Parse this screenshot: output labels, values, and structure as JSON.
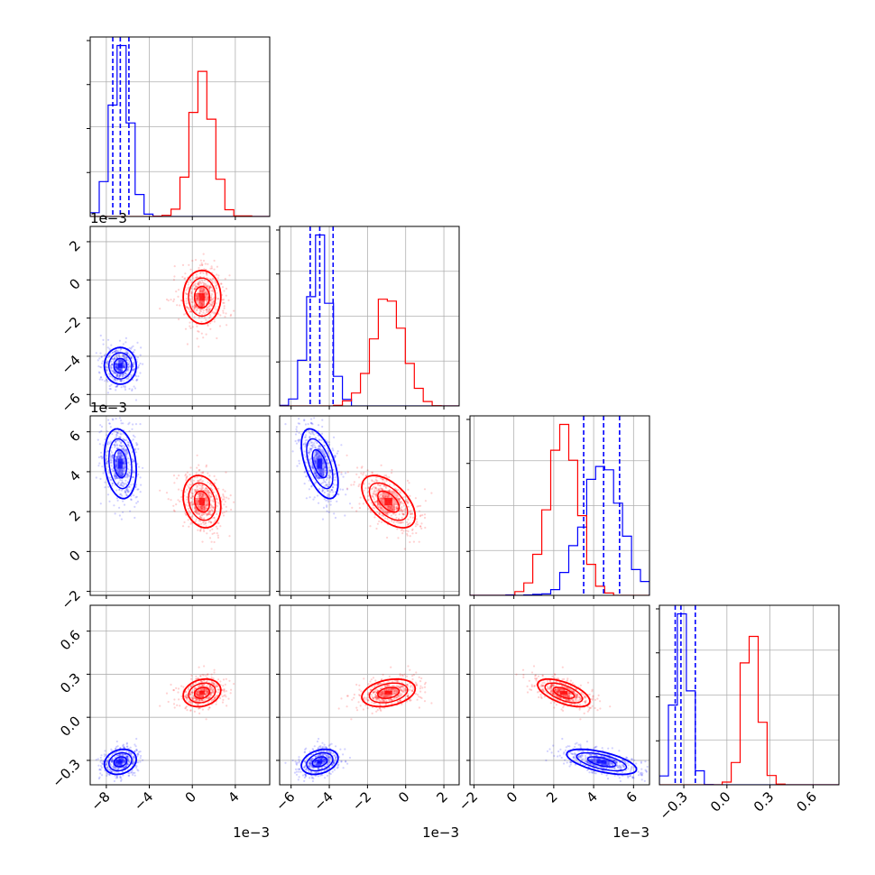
{
  "chart_data": {
    "type": "corner",
    "parameters": 4,
    "grid": true,
    "colors": {
      "blue": "#0000ff",
      "red": "#ff0000",
      "grid": "#b0b0b0",
      "frame": "#000000"
    },
    "axes": {
      "0": {
        "range": [
          -9.5,
          7.2
        ],
        "ticks": [
          -8,
          -4,
          0,
          4
        ],
        "tick_labels": [
          "−8",
          "−4",
          "0",
          "4"
        ],
        "offset_label": "1e−3"
      },
      "1": {
        "range": [
          -6.6,
          2.8
        ],
        "ticks": [
          -6,
          -4,
          -2,
          0,
          2
        ],
        "tick_labels": [
          "−6",
          "−4",
          "−2",
          "0",
          "2"
        ],
        "offset_label": "1e−3"
      },
      "2": {
        "range": [
          -2.2,
          6.8
        ],
        "ticks": [
          -2,
          0,
          2,
          4,
          6
        ],
        "tick_labels": [
          "−2",
          "0",
          "2",
          "4",
          "6"
        ],
        "offset_label": "1e−3"
      },
      "3": {
        "range": [
          -0.47,
          0.78
        ],
        "ticks": [
          -0.3,
          0.0,
          0.3,
          0.6
        ],
        "tick_labels": [
          "−0.3",
          "0.0",
          "0.3",
          "0.6"
        ],
        "offset_label": ""
      }
    },
    "offset_labels_left": [
      "1e−3",
      "1e−3"
    ],
    "series": [
      {
        "color": "blue",
        "mean": [
          -6.7,
          -4.5,
          4.4,
          -0.31
        ],
        "sd": [
          0.85,
          0.55,
          1.0,
          0.05
        ],
        "quantiles": [
          [
            -7.4,
            -6.7,
            -5.9
          ],
          [
            -5.0,
            -4.5,
            -3.8
          ],
          [
            3.5,
            4.5,
            5.3
          ],
          [
            -0.36,
            -0.32,
            -0.22
          ]
        ]
      },
      {
        "color": "red",
        "mean": [
          0.9,
          -0.9,
          2.5,
          0.17
        ],
        "sd": [
          1.0,
          0.8,
          0.75,
          0.055
        ],
        "quantiles": []
      }
    ],
    "correlation": [
      [
        1.0,
        0.0,
        -0.2,
        0.2
      ],
      [
        0.0,
        1.0,
        -0.55,
        0.3
      ],
      [
        -0.2,
        -0.55,
        1.0,
        -0.6
      ],
      [
        0.2,
        0.3,
        -0.6,
        1.0
      ]
    ]
  }
}
